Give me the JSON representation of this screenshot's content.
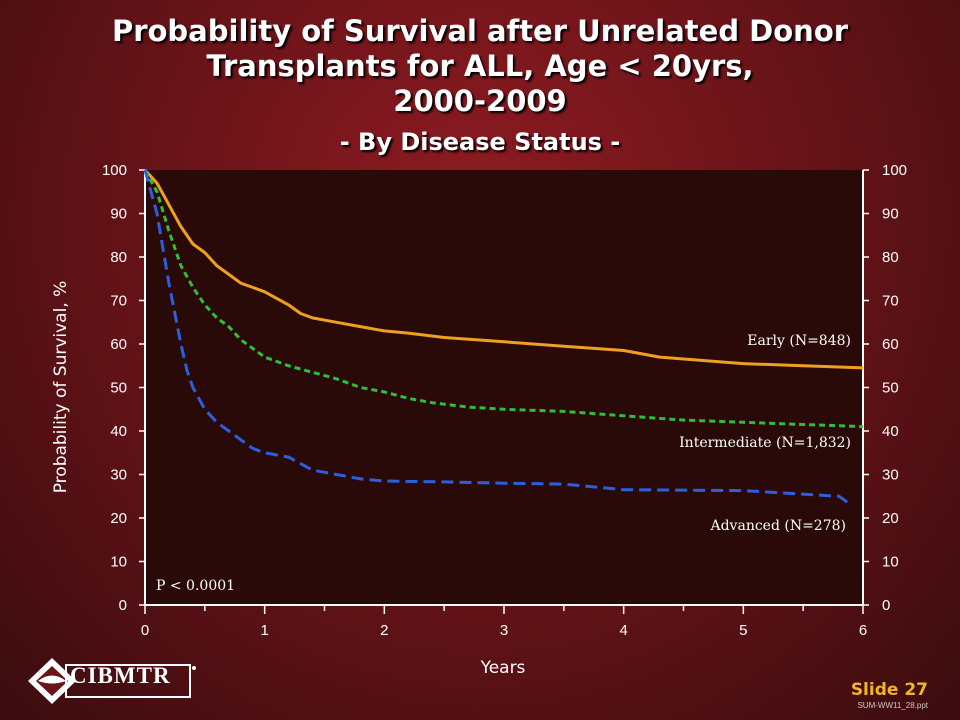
{
  "slide": {
    "title_lines": [
      "Probability of Survival after Unrelated Donor",
      "Transplants for ALL, Age < 20yrs,",
      "2000-2009"
    ],
    "subtitle": "- By Disease Status -",
    "slide_number": "Slide 27",
    "file_code": "SUM-WW11_28.ppt",
    "logo_text": "CIBMTR"
  },
  "chart_data": {
    "type": "line",
    "xlabel": "Years",
    "ylabel": "Probability of Survival, %",
    "xlim": [
      0,
      6
    ],
    "ylim": [
      0,
      100
    ],
    "x_ticks": [
      0,
      1,
      2,
      3,
      4,
      5,
      6
    ],
    "y_ticks": [
      0,
      10,
      20,
      30,
      40,
      50,
      60,
      70,
      80,
      90,
      100
    ],
    "grid": false,
    "secondary_y_axis": true,
    "annotation": "P < 0.0001",
    "series": [
      {
        "name": "Early (N=848)",
        "color": "#f0a020",
        "style": "solid",
        "points": [
          [
            0,
            100
          ],
          [
            0.1,
            97
          ],
          [
            0.2,
            92
          ],
          [
            0.3,
            87
          ],
          [
            0.4,
            83
          ],
          [
            0.5,
            81
          ],
          [
            0.6,
            78
          ],
          [
            0.7,
            76
          ],
          [
            0.8,
            74
          ],
          [
            0.9,
            73
          ],
          [
            1.0,
            72
          ],
          [
            1.2,
            69
          ],
          [
            1.3,
            67
          ],
          [
            1.4,
            66
          ],
          [
            1.6,
            65
          ],
          [
            1.8,
            64
          ],
          [
            2.0,
            63
          ],
          [
            2.2,
            62.5
          ],
          [
            2.5,
            61.5
          ],
          [
            3.0,
            60.5
          ],
          [
            3.5,
            59.5
          ],
          [
            4.0,
            58.5
          ],
          [
            4.3,
            57
          ],
          [
            5.0,
            55.5
          ],
          [
            5.5,
            55
          ],
          [
            6.0,
            54.5
          ]
        ]
      },
      {
        "name": "Intermediate (N=1,832)",
        "color": "#2bbf3a",
        "style": "dashed",
        "points": [
          [
            0,
            100
          ],
          [
            0.1,
            95
          ],
          [
            0.2,
            86
          ],
          [
            0.3,
            78
          ],
          [
            0.4,
            73
          ],
          [
            0.5,
            69
          ],
          [
            0.6,
            66
          ],
          [
            0.7,
            64
          ],
          [
            0.8,
            61
          ],
          [
            0.9,
            59
          ],
          [
            1.0,
            57
          ],
          [
            1.2,
            55
          ],
          [
            1.4,
            53.5
          ],
          [
            1.6,
            52
          ],
          [
            1.8,
            50
          ],
          [
            2.0,
            49
          ],
          [
            2.2,
            47.5
          ],
          [
            2.4,
            46.5
          ],
          [
            2.7,
            45.5
          ],
          [
            3.0,
            45
          ],
          [
            3.5,
            44.5
          ],
          [
            4.0,
            43.5
          ],
          [
            4.5,
            42.5
          ],
          [
            5.0,
            42
          ],
          [
            5.5,
            41.5
          ],
          [
            6.0,
            41
          ]
        ]
      },
      {
        "name": "Advanced (N=278)",
        "color": "#2a5fe0",
        "style": "dashed",
        "points": [
          [
            0,
            100
          ],
          [
            0.05,
            95
          ],
          [
            0.1,
            90
          ],
          [
            0.15,
            82
          ],
          [
            0.2,
            74
          ],
          [
            0.25,
            67
          ],
          [
            0.3,
            60
          ],
          [
            0.35,
            54
          ],
          [
            0.4,
            50
          ],
          [
            0.5,
            45
          ],
          [
            0.6,
            42
          ],
          [
            0.7,
            40
          ],
          [
            0.8,
            38
          ],
          [
            0.9,
            36
          ],
          [
            1.0,
            35
          ],
          [
            1.2,
            34
          ],
          [
            1.4,
            31
          ],
          [
            1.6,
            30
          ],
          [
            1.8,
            29
          ],
          [
            2.0,
            28.5
          ],
          [
            2.5,
            28.3
          ],
          [
            3.0,
            28
          ],
          [
            3.5,
            27.8
          ],
          [
            4.0,
            26.5
          ],
          [
            5.0,
            26.3
          ],
          [
            5.8,
            25
          ],
          [
            5.9,
            23
          ]
        ]
      }
    ]
  }
}
